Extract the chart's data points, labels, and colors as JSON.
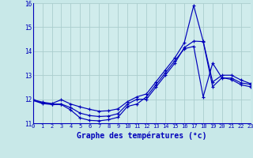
{
  "bg_color": "#c8e8e8",
  "plot_bg_color": "#d0ecec",
  "grid_color": "#aacece",
  "line_color": "#0000bb",
  "xlabel": "Graphe des températures (°c)",
  "xlim": [
    0,
    23
  ],
  "ylim": [
    11,
    16
  ],
  "yticks": [
    11,
    12,
    13,
    14,
    15,
    16
  ],
  "xticks": [
    0,
    1,
    2,
    3,
    4,
    5,
    6,
    7,
    8,
    9,
    10,
    11,
    12,
    13,
    14,
    15,
    16,
    17,
    18,
    19,
    20,
    21,
    22,
    23
  ],
  "s1_x": [
    0,
    1,
    2,
    3,
    4,
    5,
    6,
    7,
    8,
    9,
    10,
    11,
    12,
    13,
    14,
    15,
    16,
    17,
    18,
    19,
    20,
    21,
    22,
    23
  ],
  "s1_y": [
    11.95,
    11.82,
    11.78,
    11.78,
    11.55,
    11.22,
    11.12,
    11.1,
    11.15,
    11.25,
    11.7,
    11.8,
    12.1,
    12.6,
    13.1,
    13.6,
    14.1,
    14.2,
    12.1,
    13.5,
    12.88,
    12.88,
    12.68,
    12.62
  ],
  "s2_x": [
    0,
    1,
    2,
    3,
    4,
    5,
    6,
    7,
    8,
    9,
    10,
    11,
    12,
    13,
    14,
    15,
    16,
    17,
    18,
    19,
    20,
    21,
    22,
    23
  ],
  "s2_y": [
    11.98,
    11.84,
    11.8,
    11.8,
    11.65,
    11.42,
    11.32,
    11.28,
    11.3,
    11.4,
    11.8,
    12.0,
    12.0,
    12.5,
    13.0,
    13.5,
    14.15,
    14.42,
    14.4,
    12.52,
    12.9,
    12.82,
    12.6,
    12.52
  ],
  "s3_x": [
    0,
    1,
    2,
    3,
    4,
    5,
    6,
    7,
    8,
    9,
    10,
    11,
    12,
    13,
    14,
    15,
    16,
    17,
    18,
    19,
    20,
    21,
    22,
    23
  ],
  "s3_y": [
    11.98,
    11.88,
    11.82,
    11.98,
    11.8,
    11.68,
    11.58,
    11.5,
    11.52,
    11.6,
    11.9,
    12.1,
    12.22,
    12.72,
    13.22,
    13.72,
    14.35,
    15.9,
    14.42,
    12.72,
    13.0,
    13.0,
    12.8,
    12.65
  ]
}
